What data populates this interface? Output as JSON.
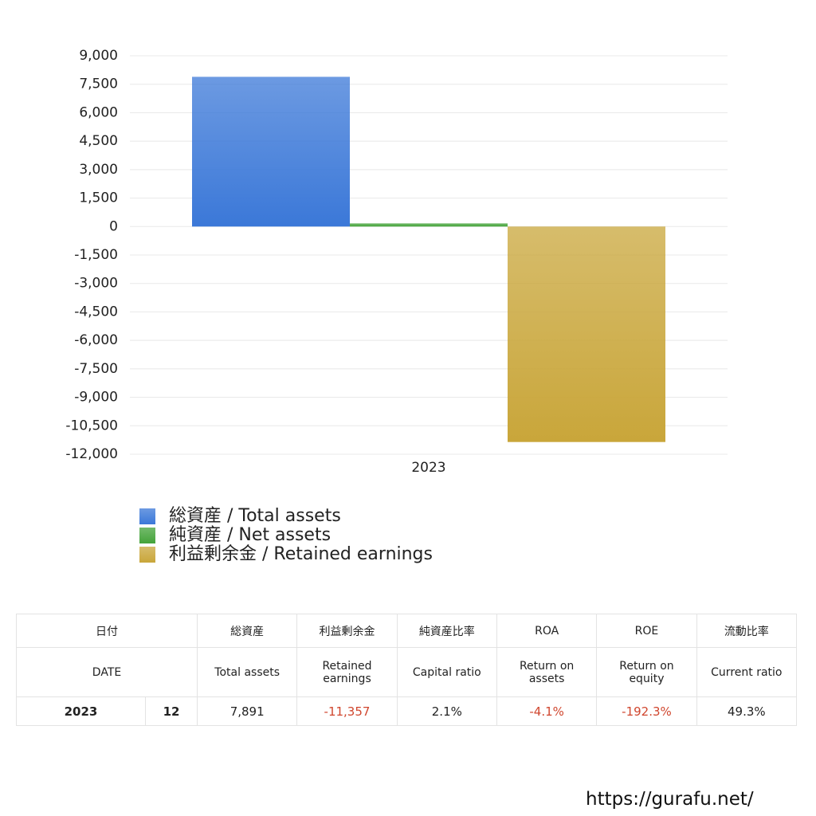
{
  "chart_data": {
    "type": "bar",
    "categories": [
      "2023"
    ],
    "series": [
      {
        "name": "総資産 / Total assets",
        "color": "#3b78d8",
        "values": [
          7891
        ]
      },
      {
        "name": "純資産 / Net assets",
        "color": "#44a33a",
        "values": [
          166
        ]
      },
      {
        "name": "利益剰余金 / Retained earnings",
        "color": "#c9a63a",
        "values": [
          -11357
        ]
      }
    ],
    "ylim": [
      -12000,
      9000
    ],
    "yticks": [
      {
        "value": 9000,
        "label": "9,000"
      },
      {
        "value": 7500,
        "label": "7,500"
      },
      {
        "value": 6000,
        "label": "6,000"
      },
      {
        "value": 4500,
        "label": "4,500"
      },
      {
        "value": 3000,
        "label": "3,000"
      },
      {
        "value": 1500,
        "label": "1,500"
      },
      0,
      {
        "value": -1500,
        "label": "-1,500"
      },
      {
        "value": -3000,
        "label": "-3,000"
      },
      {
        "value": -4500,
        "label": "-4,500"
      },
      {
        "value": -6000,
        "label": "-6,000"
      },
      {
        "value": -7500,
        "label": "-7,500"
      },
      {
        "value": -9000,
        "label": "-9,000"
      },
      {
        "value": -10500,
        "label": "-10,500"
      },
      {
        "value": -12000,
        "label": "-12,000"
      }
    ],
    "grid": true
  },
  "table": {
    "header_jp": [
      "日付",
      "総資産",
      "利益剰余金",
      "純資産比率",
      "ROA",
      "ROE",
      "流動比率"
    ],
    "header_en": [
      "DATE",
      "Total assets",
      "Retained earnings",
      "Capital ratio",
      "Return on assets",
      "Return on equity",
      "Current ratio"
    ],
    "rows": [
      [
        "2023",
        "12",
        "7,891",
        "-11,357",
        "2.1%",
        "-4.1%",
        "-192.3%",
        "49.3%"
      ]
    ]
  },
  "footer": {
    "url": "https://gurafu.net/"
  }
}
